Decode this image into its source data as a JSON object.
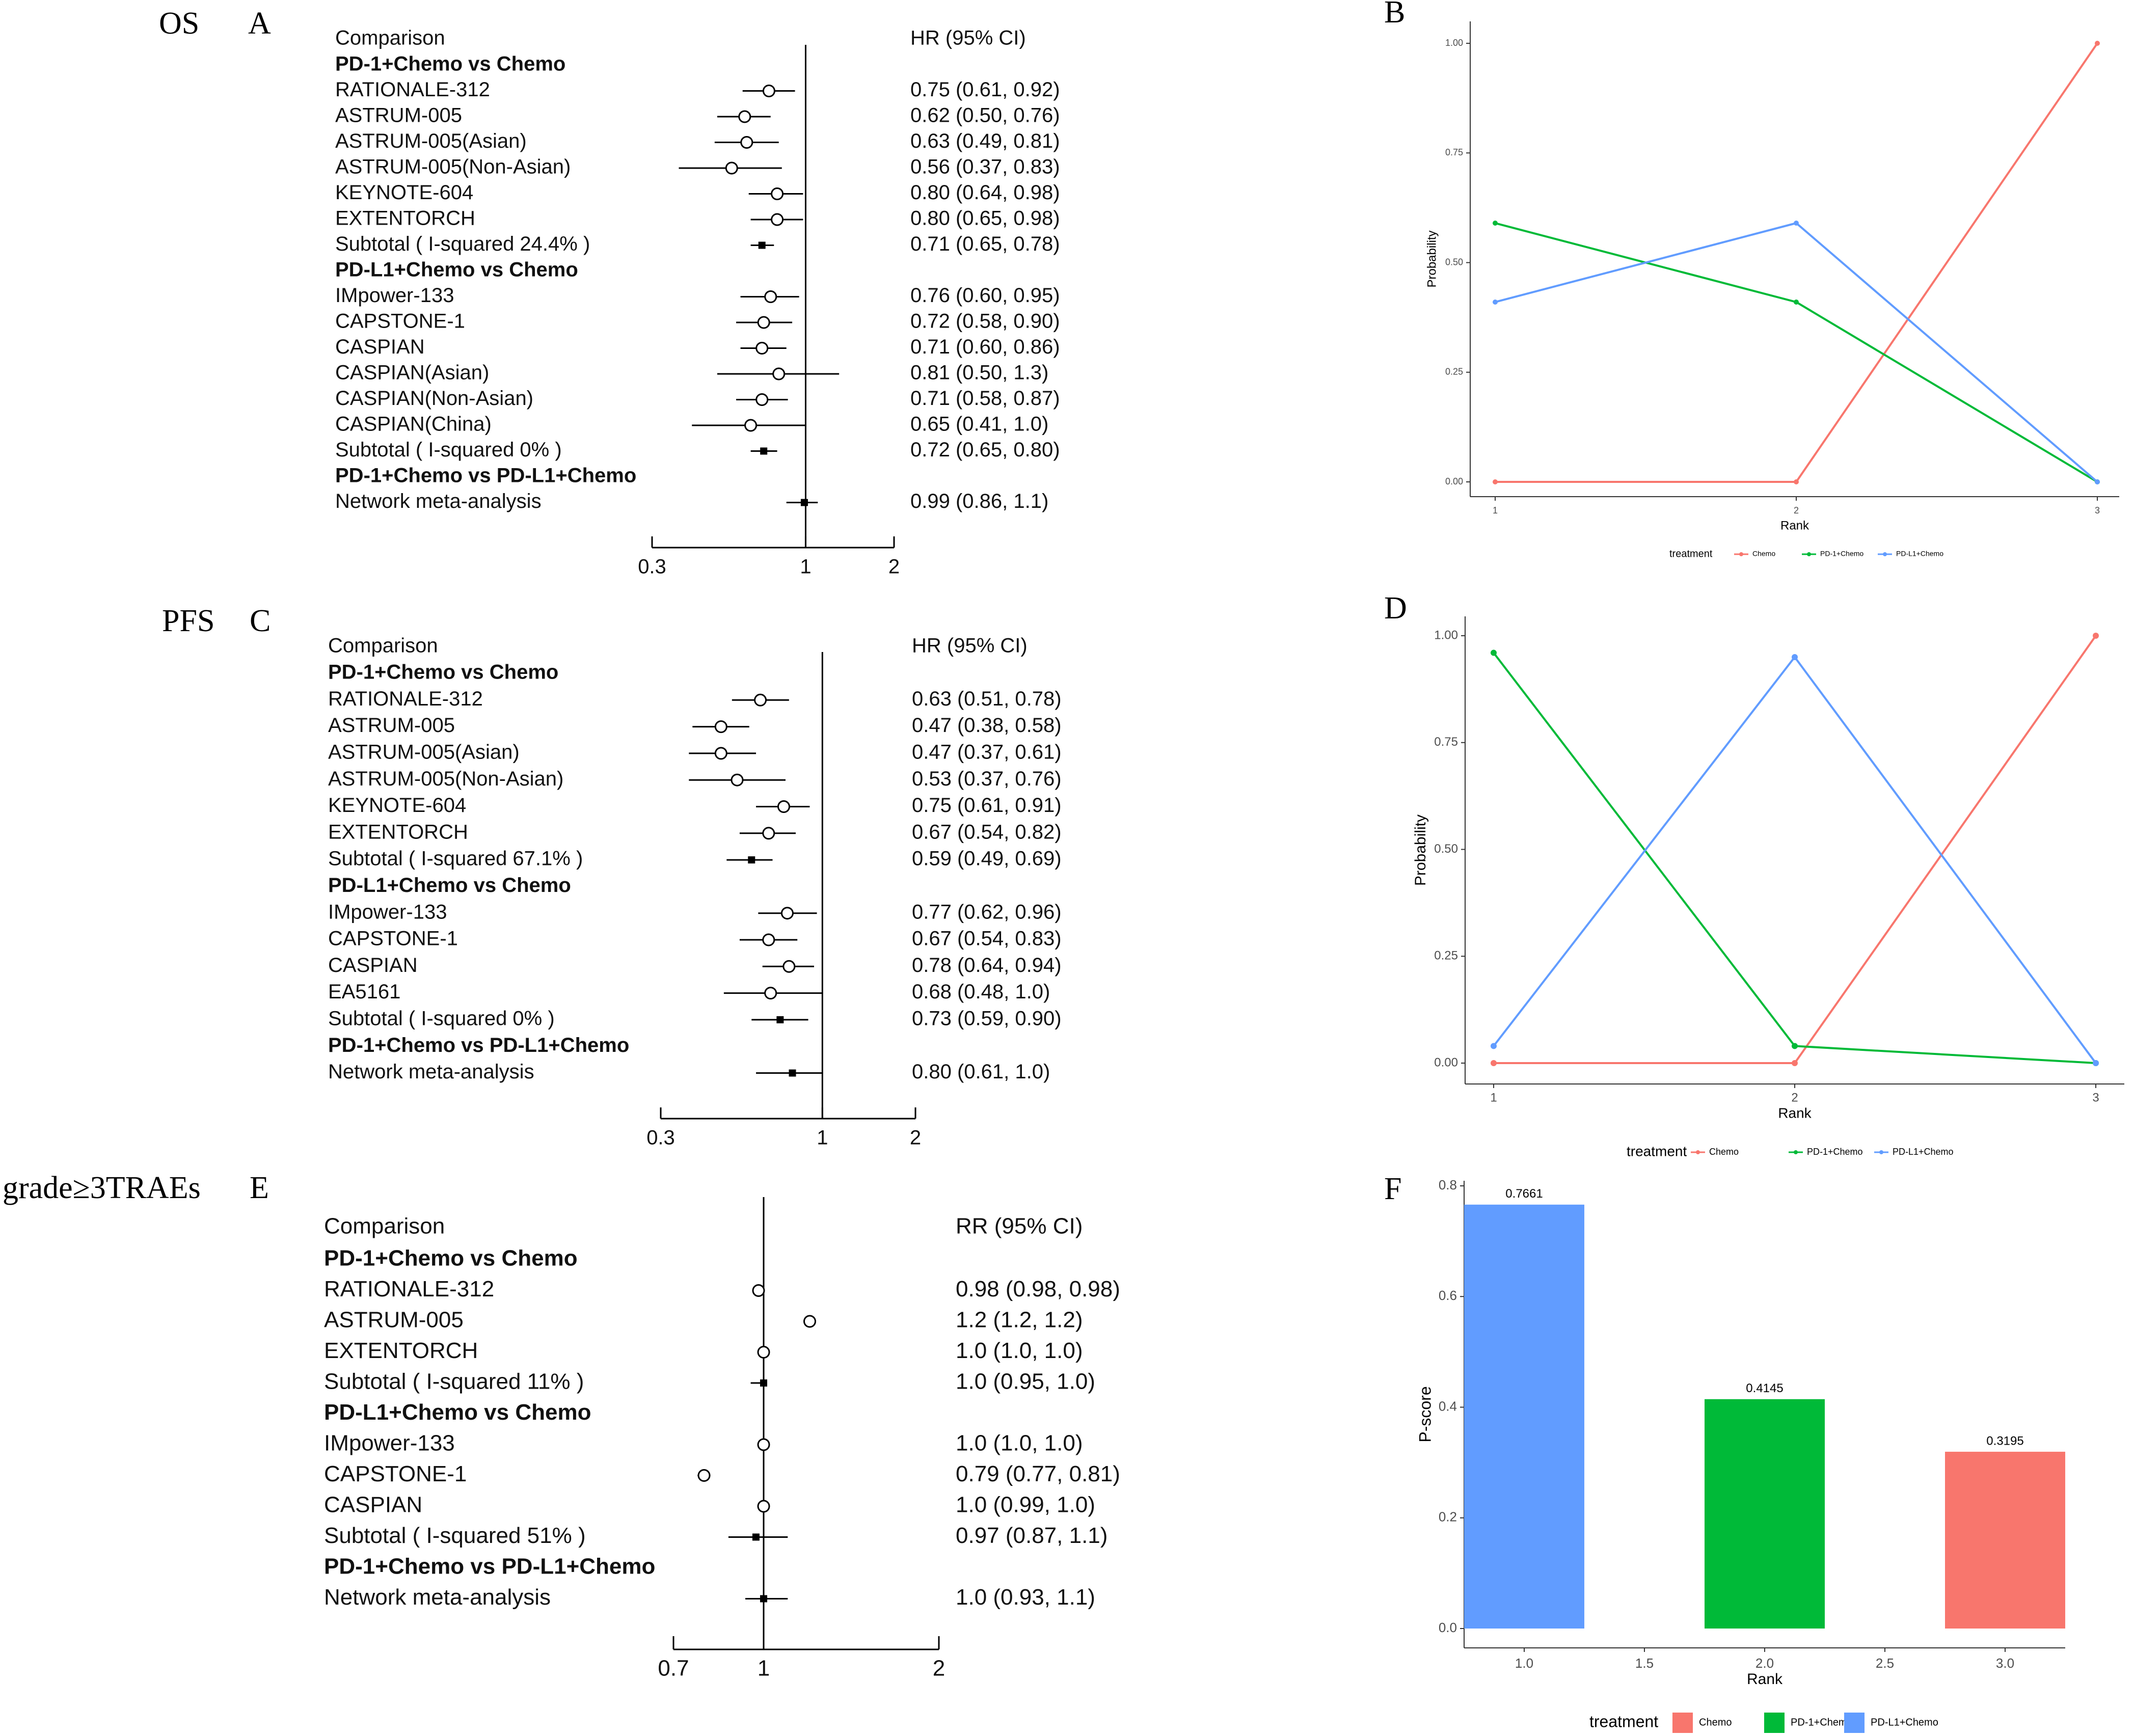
{
  "chart_data": [
    {
      "panel": "A",
      "type": "forest",
      "section_title": "OS",
      "header_label": "Comparison",
      "header_ci": "HR (95% CI)",
      "axis": {
        "min": 0.3,
        "max": 2,
        "ref": 1,
        "scale": "log",
        "ticks": [
          "0.3",
          "1",
          "2"
        ]
      },
      "rows": [
        {
          "kind": "group",
          "label": "PD-1+Chemo vs Chemo"
        },
        {
          "kind": "study",
          "label": "RATIONALE-312",
          "est": 0.75,
          "lo": 0.61,
          "hi": 0.92,
          "ci": "0.75 (0.61, 0.92)"
        },
        {
          "kind": "study",
          "label": "ASTRUM-005",
          "est": 0.62,
          "lo": 0.5,
          "hi": 0.76,
          "ci": "0.62 (0.50, 0.76)"
        },
        {
          "kind": "study",
          "label": "ASTRUM-005(Asian)",
          "est": 0.63,
          "lo": 0.49,
          "hi": 0.81,
          "ci": "0.63 (0.49, 0.81)"
        },
        {
          "kind": "study",
          "label": "ASTRUM-005(Non-Asian)",
          "est": 0.56,
          "lo": 0.37,
          "hi": 0.83,
          "ci": "0.56 (0.37, 0.83)"
        },
        {
          "kind": "study",
          "label": "KEYNOTE-604",
          "est": 0.8,
          "lo": 0.64,
          "hi": 0.98,
          "ci": "0.80 (0.64, 0.98)"
        },
        {
          "kind": "study",
          "label": "EXTENTORCH",
          "est": 0.8,
          "lo": 0.65,
          "hi": 0.98,
          "ci": "0.80 (0.65, 0.98)"
        },
        {
          "kind": "subtotal",
          "label": "Subtotal ( I-squared 24.4% )",
          "est": 0.71,
          "lo": 0.65,
          "hi": 0.78,
          "ci": "0.71 (0.65, 0.78)"
        },
        {
          "kind": "group",
          "label": "PD-L1+Chemo vs Chemo"
        },
        {
          "kind": "study",
          "label": "IMpower-133",
          "est": 0.76,
          "lo": 0.6,
          "hi": 0.95,
          "ci": "0.76 (0.60, 0.95)"
        },
        {
          "kind": "study",
          "label": "CAPSTONE-1",
          "est": 0.72,
          "lo": 0.58,
          "hi": 0.9,
          "ci": "0.72 (0.58, 0.90)"
        },
        {
          "kind": "study",
          "label": "CASPIAN",
          "est": 0.71,
          "lo": 0.6,
          "hi": 0.86,
          "ci": "0.71 (0.60, 0.86)"
        },
        {
          "kind": "study",
          "label": "CASPIAN(Asian)",
          "est": 0.81,
          "lo": 0.5,
          "hi": 1.3,
          "ci": "0.81 (0.50, 1.3)"
        },
        {
          "kind": "study",
          "label": "CASPIAN(Non-Asian)",
          "est": 0.71,
          "lo": 0.58,
          "hi": 0.87,
          "ci": "0.71 (0.58, 0.87)"
        },
        {
          "kind": "study",
          "label": "CASPIAN(China)",
          "est": 0.65,
          "lo": 0.41,
          "hi": 1.0,
          "ci": "0.65 (0.41, 1.0)"
        },
        {
          "kind": "subtotal",
          "label": "Subtotal ( I-squared 0% )",
          "est": 0.72,
          "lo": 0.65,
          "hi": 0.8,
          "ci": "0.72 (0.65, 0.80)"
        },
        {
          "kind": "group",
          "label": "PD-1+Chemo vs PD-L1+Chemo"
        },
        {
          "kind": "subtotal",
          "label": "Network meta-analysis",
          "est": 0.99,
          "lo": 0.86,
          "hi": 1.1,
          "ci": "0.99 (0.86, 1.1)"
        }
      ]
    },
    {
      "panel": "B",
      "type": "line",
      "xlabel": "Rank",
      "ylabel": "Probability",
      "x": [
        1,
        2,
        3
      ],
      "xticks": [
        "1",
        "2",
        "3"
      ],
      "ylim": [
        0,
        1
      ],
      "yticks": [
        "0.00",
        "0.25",
        "0.50",
        "0.75",
        "1.00"
      ],
      "legend_title": "treatment",
      "series": [
        {
          "name": "Chemo",
          "color": "#F8766D",
          "values": [
            0,
            0,
            1
          ]
        },
        {
          "name": "PD-1+Chemo",
          "color": "#00BA38",
          "values": [
            0.59,
            0.41,
            0
          ]
        },
        {
          "name": "PD-L1+Chemo",
          "color": "#619CFF",
          "values": [
            0.41,
            0.59,
            0
          ]
        }
      ]
    },
    {
      "panel": "C",
      "type": "forest",
      "section_title": "PFS",
      "header_label": "Comparison",
      "header_ci": "HR (95% CI)",
      "axis": {
        "min": 0.3,
        "max": 2,
        "ref": 1,
        "scale": "log",
        "ticks": [
          "0.3",
          "1",
          "2"
        ]
      },
      "rows": [
        {
          "kind": "group",
          "label": "PD-1+Chemo vs Chemo"
        },
        {
          "kind": "study",
          "label": "RATIONALE-312",
          "est": 0.63,
          "lo": 0.51,
          "hi": 0.78,
          "ci": "0.63 (0.51, 0.78)"
        },
        {
          "kind": "study",
          "label": "ASTRUM-005",
          "est": 0.47,
          "lo": 0.38,
          "hi": 0.58,
          "ci": "0.47 (0.38, 0.58)"
        },
        {
          "kind": "study",
          "label": "ASTRUM-005(Asian)",
          "est": 0.47,
          "lo": 0.37,
          "hi": 0.61,
          "ci": "0.47 (0.37, 0.61)"
        },
        {
          "kind": "study",
          "label": "ASTRUM-005(Non-Asian)",
          "est": 0.53,
          "lo": 0.37,
          "hi": 0.76,
          "ci": "0.53 (0.37, 0.76)"
        },
        {
          "kind": "study",
          "label": "KEYNOTE-604",
          "est": 0.75,
          "lo": 0.61,
          "hi": 0.91,
          "ci": "0.75 (0.61, 0.91)"
        },
        {
          "kind": "study",
          "label": "EXTENTORCH",
          "est": 0.67,
          "lo": 0.54,
          "hi": 0.82,
          "ci": "0.67 (0.54, 0.82)"
        },
        {
          "kind": "subtotal",
          "label": "Subtotal ( I-squared 67.1% )",
          "est": 0.59,
          "lo": 0.49,
          "hi": 0.69,
          "ci": "0.59 (0.49, 0.69)"
        },
        {
          "kind": "group",
          "label": "PD-L1+Chemo vs Chemo"
        },
        {
          "kind": "study",
          "label": "IMpower-133",
          "est": 0.77,
          "lo": 0.62,
          "hi": 0.96,
          "ci": "0.77 (0.62, 0.96)"
        },
        {
          "kind": "study",
          "label": "CAPSTONE-1",
          "est": 0.67,
          "lo": 0.54,
          "hi": 0.83,
          "ci": "0.67 (0.54, 0.83)"
        },
        {
          "kind": "study",
          "label": "CASPIAN",
          "est": 0.78,
          "lo": 0.64,
          "hi": 0.94,
          "ci": "0.78 (0.64, 0.94)"
        },
        {
          "kind": "study",
          "label": "EA5161",
          "est": 0.68,
          "lo": 0.48,
          "hi": 1.0,
          "ci": "0.68 (0.48, 1.0)"
        },
        {
          "kind": "subtotal",
          "label": "Subtotal ( I-squared 0% )",
          "est": 0.73,
          "lo": 0.59,
          "hi": 0.9,
          "ci": "0.73 (0.59, 0.90)"
        },
        {
          "kind": "group",
          "label": "PD-1+Chemo vs PD-L1+Chemo"
        },
        {
          "kind": "subtotal",
          "label": "Network meta-analysis",
          "est": 0.8,
          "lo": 0.61,
          "hi": 1.0,
          "ci": "0.80 (0.61, 1.0)"
        }
      ]
    },
    {
      "panel": "D",
      "type": "line",
      "xlabel": "Rank",
      "ylabel": "Probability",
      "x": [
        1,
        2,
        3
      ],
      "xticks": [
        "1",
        "2",
        "3"
      ],
      "ylim": [
        0,
        1
      ],
      "yticks": [
        "0.00",
        "0.25",
        "0.50",
        "0.75",
        "1.00"
      ],
      "legend_title": "treatment",
      "series": [
        {
          "name": "Chemo",
          "color": "#F8766D",
          "values": [
            0,
            0,
            1
          ]
        },
        {
          "name": "PD-1+Chemo",
          "color": "#00BA38",
          "values": [
            0.96,
            0.04,
            0
          ]
        },
        {
          "name": "PD-L1+Chemo",
          "color": "#619CFF",
          "values": [
            0.04,
            0.95,
            0
          ]
        }
      ]
    },
    {
      "panel": "E",
      "type": "forest",
      "section_title": "grade≥3TRAEs",
      "header_label": "Comparison",
      "header_ci": "RR (95% CI)",
      "axis": {
        "min": 0.7,
        "max": 2,
        "ref": 1,
        "scale": "log",
        "ticks": [
          "0.7",
          "1",
          "2"
        ]
      },
      "rows": [
        {
          "kind": "group",
          "label": "PD-1+Chemo vs Chemo"
        },
        {
          "kind": "study",
          "label": "RATIONALE-312",
          "est": 0.98,
          "lo": 0.98,
          "hi": 0.98,
          "ci": "0.98 (0.98, 0.98)"
        },
        {
          "kind": "study",
          "label": "ASTRUM-005",
          "est": 1.2,
          "lo": 1.18,
          "hi": 1.22,
          "ci": "1.2 (1.2, 1.2)"
        },
        {
          "kind": "study",
          "label": "EXTENTORCH",
          "est": 1.0,
          "lo": 1.0,
          "hi": 1.0,
          "ci": "1.0 (1.0, 1.0)"
        },
        {
          "kind": "subtotal",
          "label": "Subtotal ( I-squared 11% )",
          "est": 1.0,
          "lo": 0.95,
          "hi": 1.0,
          "ci": "1.0 (0.95, 1.0)"
        },
        {
          "kind": "group",
          "label": "PD-L1+Chemo vs Chemo"
        },
        {
          "kind": "study",
          "label": "IMpower-133",
          "est": 1.0,
          "lo": 1.0,
          "hi": 1.0,
          "ci": "1.0 (1.0, 1.0)"
        },
        {
          "kind": "study",
          "label": "CAPSTONE-1",
          "est": 0.79,
          "lo": 0.77,
          "hi": 0.81,
          "ci": "0.79 (0.77, 0.81)"
        },
        {
          "kind": "study",
          "label": "CASPIAN",
          "est": 1.0,
          "lo": 0.99,
          "hi": 1.0,
          "ci": "1.0 (0.99, 1.0)"
        },
        {
          "kind": "subtotal",
          "label": "Subtotal ( I-squared 51% )",
          "est": 0.97,
          "lo": 0.87,
          "hi": 1.1,
          "ci": "0.97 (0.87, 1.1)"
        },
        {
          "kind": "group",
          "label": "PD-1+Chemo vs PD-L1+Chemo"
        },
        {
          "kind": "subtotal",
          "label": "Network meta-analysis",
          "est": 1.0,
          "lo": 0.93,
          "hi": 1.1,
          "ci": "1.0 (0.93, 1.1)"
        }
      ]
    },
    {
      "panel": "F",
      "type": "bar",
      "xlabel": "Rank",
      "ylabel": "P-score",
      "xlim": [
        0.75,
        3.25
      ],
      "xticks": [
        "1.0",
        "1.5",
        "2.0",
        "2.5",
        "3.0"
      ],
      "ylim": [
        0,
        0.8
      ],
      "yticks": [
        "0.0",
        "0.2",
        "0.4",
        "0.6",
        "0.8"
      ],
      "legend_title": "treatment",
      "legend": [
        {
          "name": "Chemo",
          "color": "#F8766D"
        },
        {
          "name": "PD-1+Chemo",
          "color": "#00BA38"
        },
        {
          "name": "PD-L1+Chemo",
          "color": "#619CFF"
        }
      ],
      "bars": [
        {
          "x": 1,
          "value": 0.7661,
          "label": "0.7661",
          "color": "#619CFF"
        },
        {
          "x": 2,
          "value": 0.4145,
          "label": "0.4145",
          "color": "#00BA38"
        },
        {
          "x": 3,
          "value": 0.3195,
          "label": "0.3195",
          "color": "#F8766D"
        }
      ]
    }
  ]
}
